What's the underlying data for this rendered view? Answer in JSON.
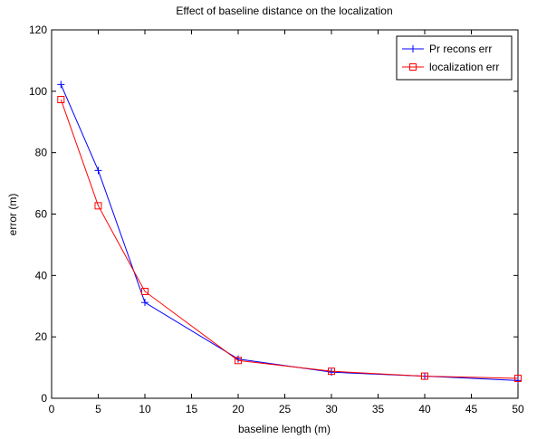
{
  "chart_data": {
    "type": "line",
    "title": "Effect of baseline distance on the localization",
    "xlabel": "baseline length (m)",
    "ylabel": "error (m)",
    "xlim": [
      0,
      50
    ],
    "ylim": [
      0,
      120
    ],
    "xticks": [
      0,
      5,
      10,
      15,
      20,
      25,
      30,
      35,
      40,
      45,
      50
    ],
    "yticks": [
      0,
      20,
      40,
      60,
      80,
      100,
      120
    ],
    "grid": false,
    "legend_position": "top-right",
    "series": [
      {
        "name": "Pr recons err",
        "color": "#0000ff",
        "marker": "plus",
        "x": [
          1,
          5,
          10,
          20,
          30,
          40,
          50
        ],
        "y": [
          102.2,
          74.2,
          31.2,
          12.8,
          8.5,
          7.2,
          5.8
        ]
      },
      {
        "name": "localization err",
        "color": "#ff0000",
        "marker": "square",
        "x": [
          1,
          5,
          10,
          20,
          30,
          40,
          50
        ],
        "y": [
          97.3,
          62.7,
          34.8,
          12.3,
          8.8,
          7.2,
          6.5
        ]
      }
    ]
  }
}
